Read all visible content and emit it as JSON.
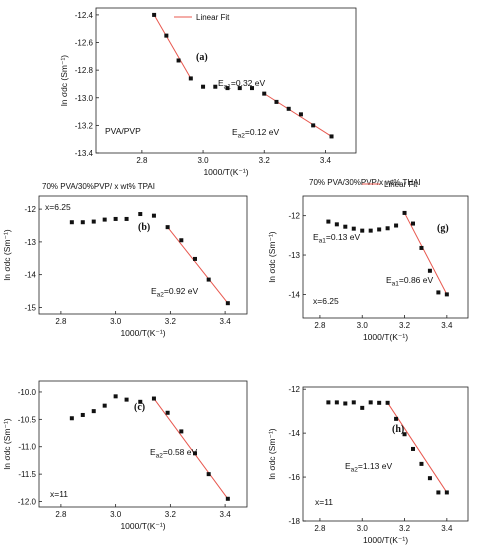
{
  "chart_data": [
    {
      "id": "a",
      "type": "scatter",
      "panel_label": "(a)",
      "title": "",
      "xlabel": "1000/T(K⁻¹)",
      "ylabel": "ln σdc (Sm⁻¹)",
      "xlim": [
        2.65,
        3.5
      ],
      "ylim": [
        -13.4,
        -12.35
      ],
      "xticks": [
        2.8,
        3.0,
        3.2,
        3.4
      ],
      "yticks": [
        -12.4,
        -12.6,
        -12.8,
        -13.0,
        -13.2,
        -13.4
      ],
      "xtick_labels": [
        "2.8",
        "3.0",
        "3.2",
        "3.4"
      ],
      "ytick_labels": [
        "-12.4",
        "-12.6",
        "-12.8",
        "-13.0",
        "-13.2",
        "-13.4"
      ],
      "legend": "Linear Fit",
      "series": [
        {
          "x": [
            2.84,
            2.88,
            2.92,
            2.96,
            3.0,
            3.04,
            3.08,
            3.12,
            3.16,
            3.2,
            3.24,
            3.28,
            3.32,
            3.36,
            3.42
          ],
          "y": [
            -12.4,
            -12.55,
            -12.73,
            -12.86,
            -12.92,
            -12.92,
            -12.93,
            -12.93,
            -12.93,
            -12.97,
            -13.03,
            -13.08,
            -13.12,
            -13.2,
            -13.28
          ]
        }
      ],
      "fit_lines": [
        {
          "x": [
            2.84,
            2.96
          ],
          "y": [
            -12.4,
            -12.86
          ]
        },
        {
          "x": [
            3.2,
            3.42
          ],
          "y": [
            -12.97,
            -13.28
          ]
        }
      ],
      "annotations": [
        {
          "base": "E",
          "sub": "a1",
          "text": "=0.32 eV"
        },
        {
          "base": "E",
          "sub": "a2",
          "text": "=0.12 eV"
        },
        {
          "text": "PVA/PVP"
        }
      ]
    },
    {
      "id": "b",
      "type": "scatter",
      "panel_label": "(b)",
      "title": "70% PVA/30%PVP/ x wt% TPAI",
      "xlabel": "1000/T(K⁻¹)",
      "ylabel": "ln σdc (Sm⁻¹)",
      "xlim": [
        2.72,
        3.48
      ],
      "ylim": [
        -15.2,
        -11.6
      ],
      "xticks": [
        2.8,
        3.0,
        3.2,
        3.4
      ],
      "yticks": [
        -12,
        -13,
        -14,
        -15
      ],
      "xtick_labels": [
        "2.8",
        "3.0",
        "3.2",
        "3.4"
      ],
      "ytick_labels": [
        "-12",
        "-13",
        "-14",
        "-15"
      ],
      "series": [
        {
          "x": [
            2.84,
            2.88,
            2.92,
            2.96,
            3.0,
            3.04,
            3.09,
            3.14,
            3.19,
            3.24,
            3.29,
            3.34,
            3.41
          ],
          "y": [
            -12.4,
            -12.4,
            -12.38,
            -12.32,
            -12.3,
            -12.3,
            -12.15,
            -12.2,
            -12.55,
            -12.95,
            -13.52,
            -14.15,
            -14.87
          ]
        }
      ],
      "fit_lines": [
        {
          "x": [
            3.19,
            3.41
          ],
          "y": [
            -12.55,
            -14.87
          ]
        }
      ],
      "annotations": [
        {
          "text": "x=6.25"
        },
        {
          "base": "E",
          "sub": "a2",
          "text": "=0.92 eV"
        }
      ]
    },
    {
      "id": "g",
      "type": "scatter",
      "panel_label": "(g)",
      "title": "70% PVA/30%PVP/x wt% THAI",
      "xlabel": "1000/T(K⁻¹)",
      "ylabel": "ln σdc (Sm⁻¹)",
      "xlim": [
        2.72,
        3.5
      ],
      "ylim": [
        -14.6,
        -11.5
      ],
      "xticks": [
        2.8,
        3.0,
        3.2,
        3.4
      ],
      "yticks": [
        -12,
        -13,
        -14
      ],
      "xtick_labels": [
        "2.8",
        "3.0",
        "3.2",
        "3.4"
      ],
      "ytick_labels": [
        "-12",
        "-13",
        "-14"
      ],
      "legend": "Linear Fit",
      "series": [
        {
          "x": [
            2.84,
            2.88,
            2.92,
            2.96,
            3.0,
            3.04,
            3.08,
            3.12,
            3.16,
            3.2,
            3.24,
            3.28,
            3.32,
            3.36,
            3.4
          ],
          "y": [
            -12.15,
            -12.22,
            -12.28,
            -12.33,
            -12.38,
            -12.38,
            -12.35,
            -12.32,
            -12.25,
            -11.93,
            -12.2,
            -12.82,
            -13.4,
            -13.95,
            -14.0
          ]
        }
      ],
      "fit_lines": [
        {
          "x": [
            3.2,
            3.4
          ],
          "y": [
            -11.93,
            -14.0
          ]
        }
      ],
      "annotations": [
        {
          "base": "E",
          "sub": "a1",
          "text": "=0.13 eV"
        },
        {
          "base": "E",
          "sub": "a1",
          "text": "=0.86 eV"
        },
        {
          "text": "x=6.25"
        }
      ]
    },
    {
      "id": "c",
      "type": "scatter",
      "panel_label": "(c)",
      "title": "",
      "xlabel": "1000/T(K⁻¹)",
      "ylabel": "ln σdc (Sm⁻¹)",
      "xlim": [
        2.72,
        3.48
      ],
      "ylim": [
        -12.1,
        -9.8
      ],
      "xticks": [
        2.8,
        3.0,
        3.2,
        3.4
      ],
      "yticks": [
        -10.0,
        -10.5,
        -11.0,
        -11.5,
        -12.0
      ],
      "xtick_labels": [
        "2.8",
        "3.0",
        "3.2",
        "3.4"
      ],
      "ytick_labels": [
        "-10.0",
        "-10.5",
        "-11.0",
        "-11.5",
        "-12.0"
      ],
      "series": [
        {
          "x": [
            2.84,
            2.88,
            2.92,
            2.96,
            3.0,
            3.04,
            3.09,
            3.14,
            3.19,
            3.24,
            3.29,
            3.34,
            3.41
          ],
          "y": [
            -10.48,
            -10.42,
            -10.35,
            -10.25,
            -10.08,
            -10.14,
            -10.18,
            -10.12,
            -10.38,
            -10.72,
            -11.12,
            -11.5,
            -11.95
          ]
        }
      ],
      "fit_lines": [
        {
          "x": [
            3.14,
            3.41
          ],
          "y": [
            -10.12,
            -11.95
          ]
        }
      ],
      "annotations": [
        {
          "base": "E",
          "sub": "a2",
          "text": "=0.58 eV"
        },
        {
          "text": "x=11"
        }
      ]
    },
    {
      "id": "h",
      "type": "scatter",
      "panel_label": "(h)",
      "title": "",
      "xlabel": "1000/T(K⁻¹)",
      "ylabel": "ln σdc (Sm⁻¹)",
      "xlim": [
        2.72,
        3.5
      ],
      "ylim": [
        -18,
        -11.9
      ],
      "xticks": [
        2.8,
        3.0,
        3.2,
        3.4
      ],
      "yticks": [
        -12,
        -14,
        -16,
        -18
      ],
      "xtick_labels": [
        "2.8",
        "3.0",
        "3.2",
        "3.4"
      ],
      "ytick_labels": [
        "-12",
        "-14",
        "-16",
        "-18"
      ],
      "series": [
        {
          "x": [
            2.84,
            2.88,
            2.92,
            2.96,
            3.0,
            3.04,
            3.08,
            3.12,
            3.16,
            3.2,
            3.24,
            3.28,
            3.32,
            3.36,
            3.4
          ],
          "y": [
            -12.6,
            -12.6,
            -12.65,
            -12.6,
            -12.85,
            -12.6,
            -12.62,
            -12.62,
            -13.35,
            -14.05,
            -14.72,
            -15.4,
            -16.05,
            -16.7,
            -16.7
          ]
        }
      ],
      "fit_lines": [
        {
          "x": [
            3.12,
            3.4
          ],
          "y": [
            -12.62,
            -16.7
          ]
        }
      ],
      "annotations": [
        {
          "base": "E",
          "sub": "a2",
          "text": "=1.13 eV"
        },
        {
          "text": "x=11"
        }
      ]
    }
  ],
  "colors": {
    "fit": "#e8584f",
    "marker": "#111111",
    "axis": "#222222"
  }
}
